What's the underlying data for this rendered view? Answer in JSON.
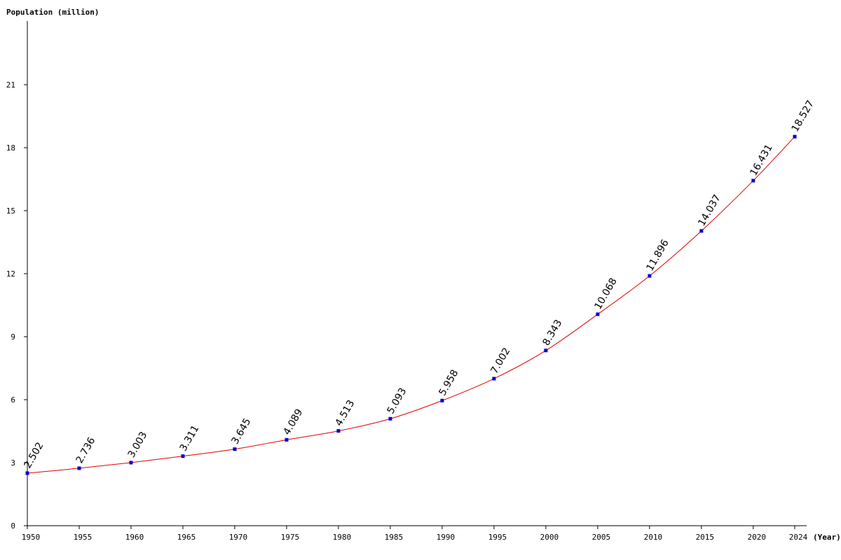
{
  "chart_data": {
    "type": "line",
    "title": "",
    "ylabel": "Population (million)",
    "xlabel": "(Year)",
    "ylim": [
      0,
      24
    ],
    "yticks": [
      0,
      3,
      6,
      9,
      12,
      15,
      18,
      21
    ],
    "grid": false,
    "x": [
      1950,
      1955,
      1960,
      1965,
      1970,
      1975,
      1980,
      1985,
      1990,
      1995,
      2000,
      2005,
      2010,
      2015,
      2020,
      2024
    ],
    "series": [
      {
        "values": [
          2.502,
          2.736,
          3.003,
          3.311,
          3.645,
          4.089,
          4.513,
          5.093,
          5.958,
          7.002,
          8.343,
          10.068,
          11.896,
          14.037,
          16.431,
          18.527
        ],
        "labels": [
          "2.502",
          "2.736",
          "3.003",
          "3.311",
          "3.645",
          "4.089",
          "4.513",
          "5.093",
          "5.958",
          "7.002",
          "8.343",
          "10.068",
          "11.896",
          "14.037",
          "16.431",
          "18.527"
        ],
        "line_color": "#e00000",
        "marker_color": "#0000cc"
      }
    ],
    "xtick_labels": [
      "1950",
      "1955",
      "1960",
      "1965",
      "1970",
      "1975",
      "1980",
      "1985",
      "1990",
      "1995",
      "2000",
      "2005",
      "2010",
      "2015",
      "2020",
      "2024"
    ],
    "ytick_labels": [
      "0",
      "3",
      "6",
      "9",
      "12",
      "15",
      "18",
      "21"
    ],
    "axis_color": "#000000"
  }
}
